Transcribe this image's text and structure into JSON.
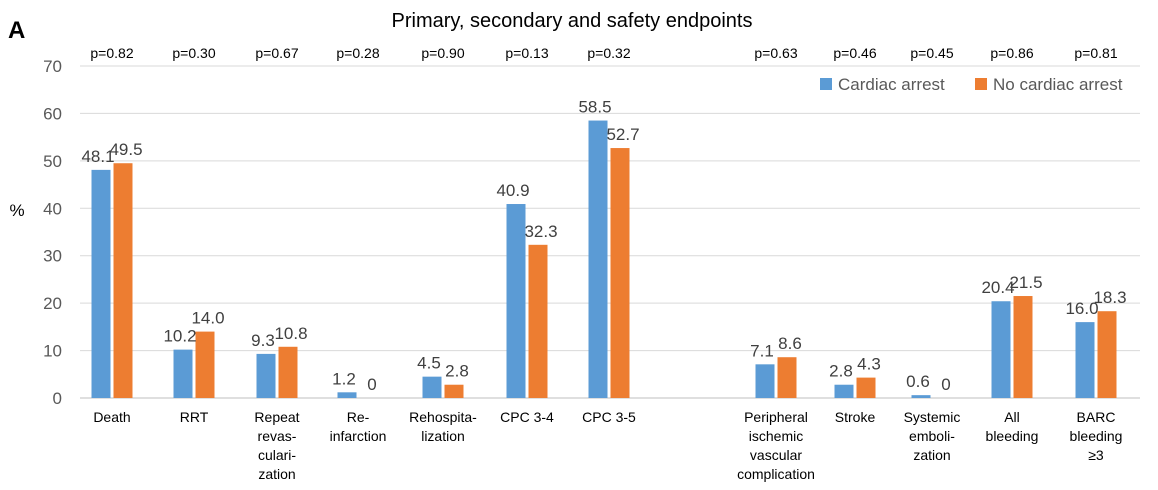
{
  "panel_label": "A",
  "chart_data": {
    "type": "bar",
    "title": "Primary, secondary and safety endpoints",
    "ylabel": "%",
    "xlabel": "",
    "ylim": [
      0,
      70
    ],
    "yticks": [
      "0",
      "10",
      "20",
      "30",
      "40",
      "50",
      "60",
      "70"
    ],
    "grid": true,
    "legend_position": "top-right",
    "categories": [
      [
        "Death"
      ],
      [
        "RRT"
      ],
      [
        "Repeat",
        "revas-",
        "culari-",
        "zation"
      ],
      [
        "Re-",
        "infarction"
      ],
      [
        "Rehospita-",
        "lization"
      ],
      [
        "CPC 3-4"
      ],
      [
        "CPC 3-5"
      ],
      [
        "Peripheral",
        "ischemic",
        "vascular",
        "complication"
      ],
      [
        "Stroke"
      ],
      [
        "Systemic",
        "emboli-",
        "zation"
      ],
      [
        "All",
        "bleeding"
      ],
      [
        "BARC",
        "bleeding",
        "≥3"
      ]
    ],
    "p_values": [
      "p=0.82",
      "p=0.30",
      "p=0.67",
      "p=0.28",
      "p=0.90",
      "p=0.13",
      "p=0.32",
      "p=0.63",
      "p=0.46",
      "p=0.45",
      "p=0.86",
      "p=0.81"
    ],
    "series": [
      {
        "name": "Cardiac arrest",
        "color": "#5B9BD5",
        "values": [
          48.1,
          10.2,
          9.3,
          1.2,
          4.5,
          40.9,
          58.5,
          7.1,
          2.8,
          0.6,
          20.4,
          16.0
        ],
        "labels": [
          "48.1",
          "10.2",
          "9.3",
          "1.2",
          "4.5",
          "40.9",
          "58.5",
          "7.1",
          "2.8",
          "0.6",
          "20.4",
          "16.0"
        ]
      },
      {
        "name": "No cardiac arrest",
        "color": "#ED7D31",
        "values": [
          49.5,
          14.0,
          10.8,
          0,
          2.8,
          32.3,
          52.7,
          8.6,
          4.3,
          0,
          21.5,
          18.3
        ],
        "labels": [
          "49.5",
          "14.0",
          "10.8",
          "0",
          "2.8",
          "32.3",
          "52.7",
          "8.6",
          "4.3",
          "0",
          "21.5",
          "18.3"
        ]
      }
    ]
  }
}
